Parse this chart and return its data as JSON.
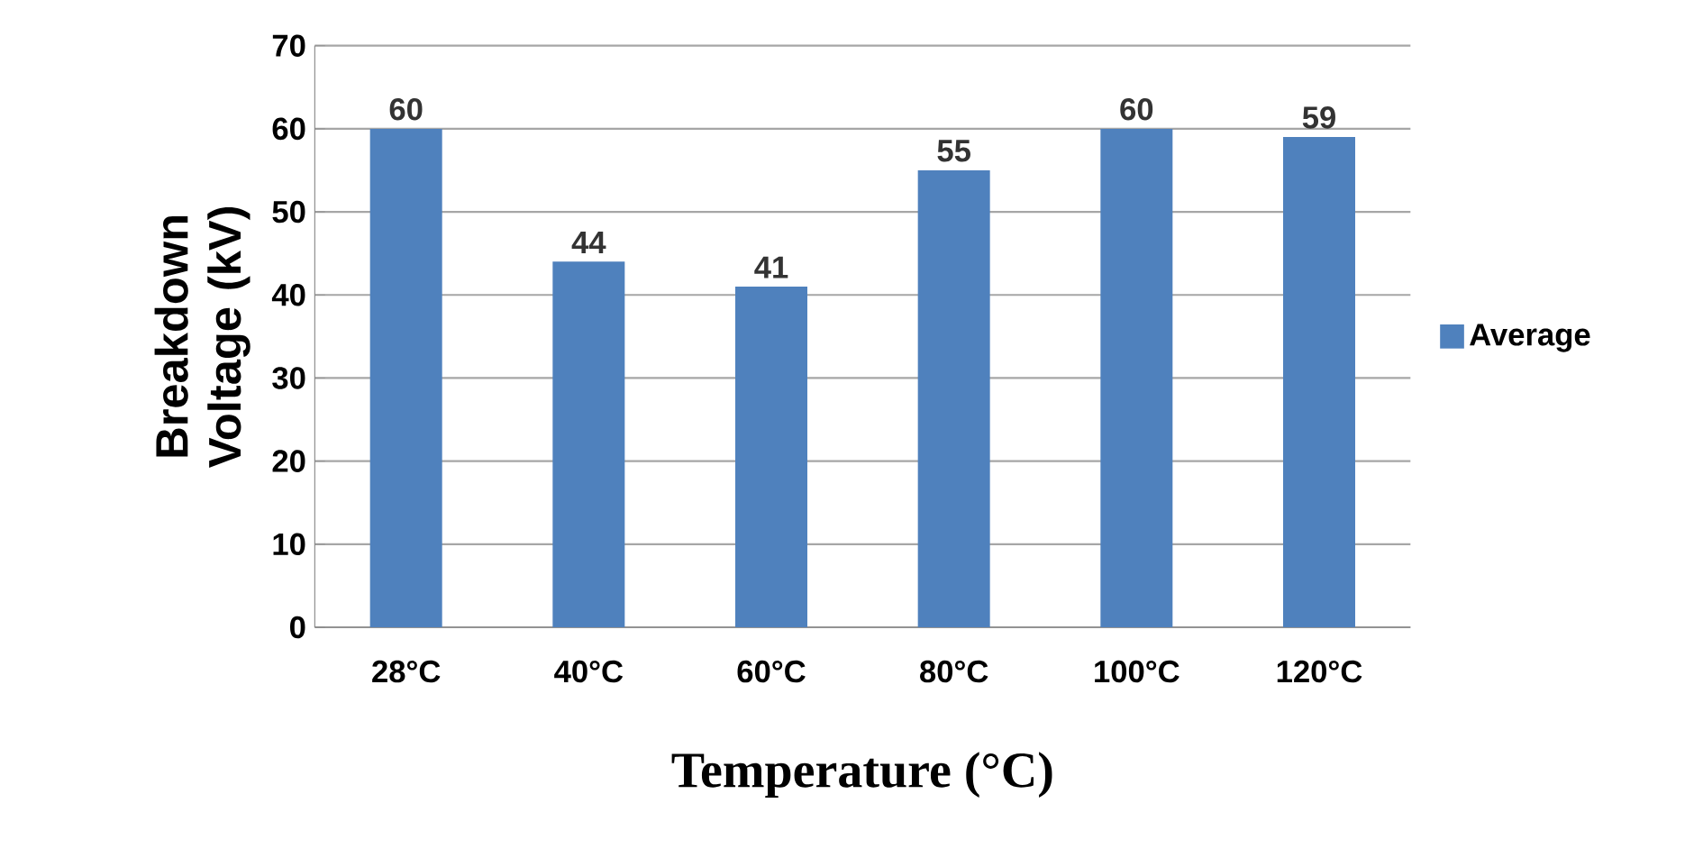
{
  "chart_data": {
    "type": "bar",
    "xlabel": "Temperature (°C)",
    "ylabel": "Breakdown Voltage (kV)",
    "categories": [
      "28°C",
      "40°C",
      "60°C",
      "80°C",
      "100°C",
      "120°C"
    ],
    "series": [
      {
        "name": "Average",
        "color": "#4f81bd",
        "values": [
          60,
          44,
          41,
          55,
          60,
          59
        ]
      }
    ],
    "ylim": [
      0,
      70
    ],
    "yticks": [
      0,
      10,
      20,
      30,
      40,
      50,
      60,
      70
    ],
    "grid": "y",
    "legend": "right",
    "data_labels": true
  }
}
